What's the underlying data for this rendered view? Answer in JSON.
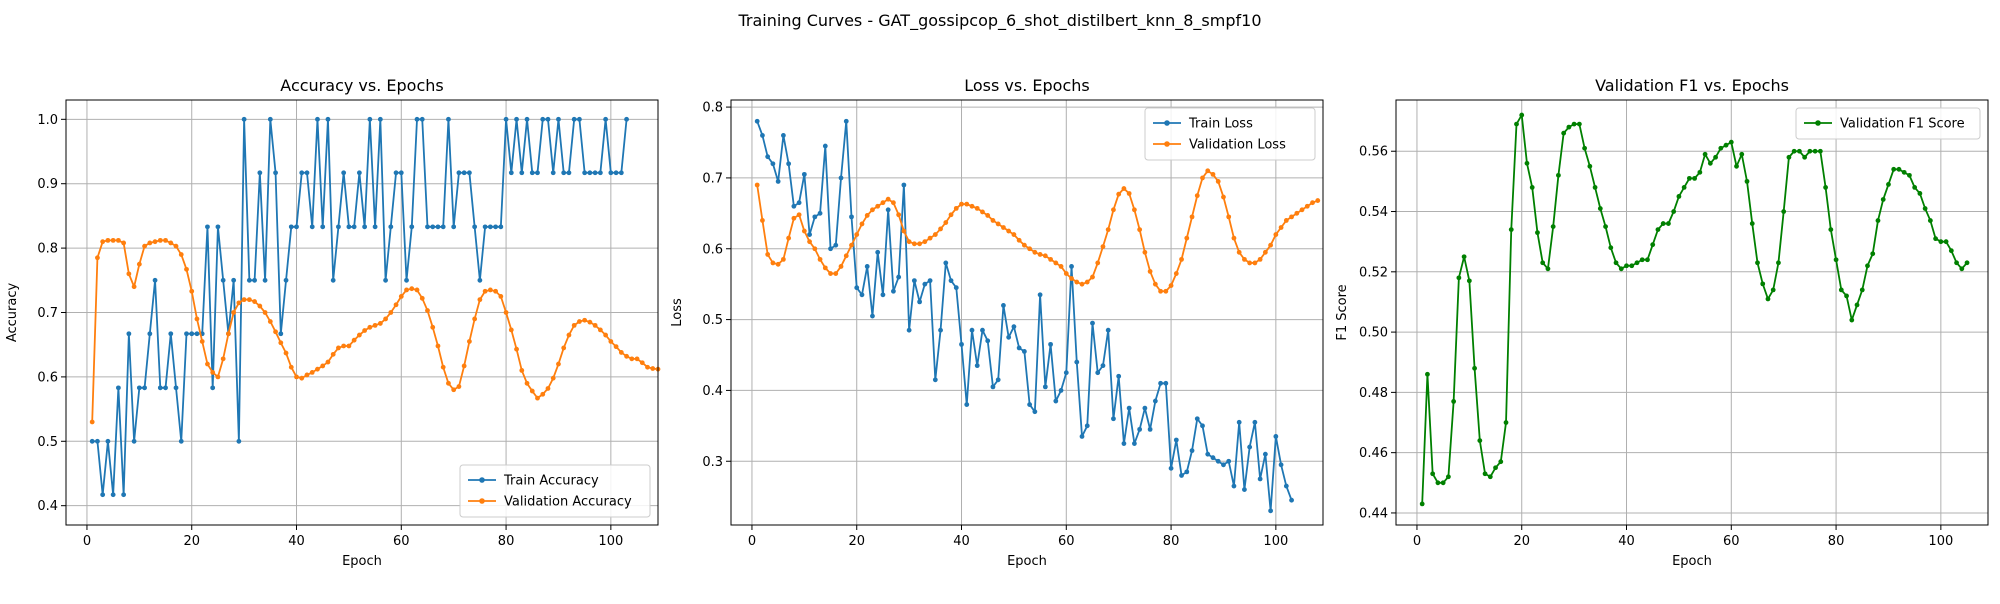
{
  "figure": {
    "suptitle": "Training Curves - GAT_gossipcop_6_shot_distilbert_knn_8_smpf10"
  },
  "colors": {
    "train": "#1f77b4",
    "val": "#ff7f0e",
    "f1": "#008000",
    "grid": "#b0b0b0"
  },
  "chart_data": [
    {
      "type": "line",
      "title": "Accuracy vs. Epochs",
      "xlabel": "Epoch",
      "ylabel": "Accuracy",
      "xlim": [
        -4,
        109
      ],
      "ylim": [
        0.37,
        1.03
      ],
      "xticks": [
        0,
        20,
        40,
        60,
        80,
        100
      ],
      "yticks": [
        0.4,
        0.5,
        0.6,
        0.7,
        0.8,
        0.9,
        1.0
      ],
      "ytick_labels": [
        "0.4",
        "0.5",
        "0.6",
        "0.7",
        "0.8",
        "0.9",
        "1.0"
      ],
      "grid": true,
      "legend": "lower-right",
      "series": [
        {
          "name": "Train Accuracy",
          "color": "#1f77b4",
          "x_start": 1,
          "values": [
            0.5,
            0.5,
            0.417,
            0.5,
            0.417,
            0.583,
            0.417,
            0.667,
            0.5,
            0.583,
            0.583,
            0.667,
            0.75,
            0.583,
            0.583,
            0.667,
            0.583,
            0.5,
            0.667,
            0.667,
            0.667,
            0.667,
            0.833,
            0.583,
            0.833,
            0.75,
            0.667,
            0.75,
            0.5,
            1.0,
            0.75,
            0.75,
            0.917,
            0.75,
            1.0,
            0.917,
            0.667,
            0.75,
            0.833,
            0.833,
            0.917,
            0.917,
            0.833,
            1.0,
            0.833,
            1.0,
            0.75,
            0.833,
            0.917,
            0.833,
            0.833,
            0.917,
            0.833,
            1.0,
            0.833,
            1.0,
            0.75,
            0.833,
            0.917,
            0.917,
            0.75,
            0.833,
            1.0,
            1.0,
            0.833,
            0.833,
            0.833,
            0.833,
            1.0,
            0.833,
            0.917,
            0.917,
            0.917,
            0.833,
            0.75,
            0.833,
            0.833,
            0.833,
            0.833,
            1.0,
            0.917,
            1.0,
            0.917,
            1.0,
            0.917,
            0.917,
            1.0,
            1.0,
            0.917,
            1.0,
            0.917,
            0.917,
            1.0,
            1.0,
            0.917,
            0.917,
            0.917,
            0.917,
            1.0,
            0.917,
            0.917,
            0.917,
            1.0
          ]
        },
        {
          "name": "Validation Accuracy",
          "color": "#ff7f0e",
          "x_start": 1,
          "values": [
            0.53,
            0.785,
            0.81,
            0.812,
            0.812,
            0.812,
            0.808,
            0.76,
            0.74,
            0.775,
            0.803,
            0.808,
            0.81,
            0.812,
            0.812,
            0.808,
            0.803,
            0.79,
            0.767,
            0.733,
            0.69,
            0.655,
            0.62,
            0.607,
            0.6,
            0.628,
            0.667,
            0.7,
            0.715,
            0.72,
            0.72,
            0.717,
            0.71,
            0.7,
            0.686,
            0.67,
            0.653,
            0.637,
            0.615,
            0.6,
            0.598,
            0.603,
            0.607,
            0.612,
            0.617,
            0.623,
            0.635,
            0.645,
            0.648,
            0.648,
            0.657,
            0.665,
            0.672,
            0.677,
            0.68,
            0.683,
            0.69,
            0.7,
            0.712,
            0.725,
            0.735,
            0.737,
            0.735,
            0.722,
            0.703,
            0.677,
            0.648,
            0.615,
            0.59,
            0.58,
            0.585,
            0.617,
            0.655,
            0.69,
            0.72,
            0.733,
            0.735,
            0.733,
            0.725,
            0.7,
            0.673,
            0.643,
            0.61,
            0.59,
            0.578,
            0.567,
            0.573,
            0.582,
            0.598,
            0.62,
            0.645,
            0.665,
            0.68,
            0.686,
            0.688,
            0.685,
            0.68,
            0.673,
            0.665,
            0.655,
            0.647,
            0.638,
            0.632,
            0.628,
            0.628,
            0.622,
            0.615,
            0.613,
            0.612
          ]
        }
      ]
    },
    {
      "type": "line",
      "title": "Loss vs. Epochs",
      "xlabel": "Epoch",
      "ylabel": "Loss",
      "xlim": [
        -4,
        109
      ],
      "ylim": [
        0.21,
        0.81
      ],
      "xticks": [
        0,
        20,
        40,
        60,
        80,
        100
      ],
      "yticks": [
        0.3,
        0.4,
        0.5,
        0.6,
        0.7,
        0.8
      ],
      "ytick_labels": [
        "0.3",
        "0.4",
        "0.5",
        "0.6",
        "0.7",
        "0.8"
      ],
      "grid": true,
      "legend": "top-right",
      "series": [
        {
          "name": "Train Loss",
          "color": "#1f77b4",
          "x_start": 1,
          "values": [
            0.78,
            0.76,
            0.73,
            0.72,
            0.695,
            0.76,
            0.72,
            0.66,
            0.665,
            0.705,
            0.62,
            0.645,
            0.65,
            0.745,
            0.6,
            0.605,
            0.7,
            0.78,
            0.645,
            0.545,
            0.535,
            0.575,
            0.505,
            0.595,
            0.535,
            0.655,
            0.54,
            0.56,
            0.69,
            0.485,
            0.555,
            0.525,
            0.55,
            0.555,
            0.415,
            0.485,
            0.58,
            0.555,
            0.545,
            0.465,
            0.38,
            0.485,
            0.435,
            0.485,
            0.47,
            0.405,
            0.415,
            0.52,
            0.475,
            0.49,
            0.46,
            0.455,
            0.38,
            0.37,
            0.535,
            0.405,
            0.465,
            0.385,
            0.4,
            0.425,
            0.575,
            0.44,
            0.335,
            0.35,
            0.495,
            0.425,
            0.435,
            0.485,
            0.36,
            0.42,
            0.325,
            0.375,
            0.325,
            0.345,
            0.375,
            0.345,
            0.385,
            0.41,
            0.41,
            0.29,
            0.33,
            0.28,
            0.285,
            0.315,
            0.36,
            0.35,
            0.31,
            0.305,
            0.3,
            0.295,
            0.3,
            0.265,
            0.355,
            0.26,
            0.32,
            0.355,
            0.275,
            0.31,
            0.23,
            0.335,
            0.295,
            0.265,
            0.245
          ]
        },
        {
          "name": "Validation Loss",
          "color": "#ff7f0e",
          "x_start": 1,
          "values": [
            0.69,
            0.64,
            0.592,
            0.58,
            0.578,
            0.585,
            0.615,
            0.643,
            0.648,
            0.625,
            0.61,
            0.6,
            0.585,
            0.573,
            0.565,
            0.565,
            0.575,
            0.59,
            0.605,
            0.62,
            0.635,
            0.647,
            0.655,
            0.66,
            0.665,
            0.67,
            0.665,
            0.648,
            0.625,
            0.61,
            0.607,
            0.607,
            0.61,
            0.615,
            0.62,
            0.628,
            0.637,
            0.648,
            0.657,
            0.663,
            0.663,
            0.66,
            0.657,
            0.652,
            0.647,
            0.64,
            0.635,
            0.63,
            0.625,
            0.62,
            0.612,
            0.605,
            0.6,
            0.595,
            0.592,
            0.59,
            0.585,
            0.58,
            0.575,
            0.565,
            0.558,
            0.553,
            0.55,
            0.553,
            0.56,
            0.58,
            0.603,
            0.627,
            0.655,
            0.677,
            0.685,
            0.678,
            0.655,
            0.627,
            0.595,
            0.568,
            0.55,
            0.54,
            0.54,
            0.548,
            0.565,
            0.585,
            0.615,
            0.645,
            0.675,
            0.7,
            0.71,
            0.705,
            0.695,
            0.673,
            0.645,
            0.615,
            0.595,
            0.585,
            0.58,
            0.58,
            0.585,
            0.595,
            0.605,
            0.62,
            0.63,
            0.64,
            0.645,
            0.65,
            0.655,
            0.66,
            0.665,
            0.668
          ]
        }
      ]
    },
    {
      "type": "line",
      "title": "Validation F1 vs. Epochs",
      "xlabel": "Epoch",
      "ylabel": "F1 Score",
      "xlim": [
        -4,
        109
      ],
      "ylim": [
        0.436,
        0.577
      ],
      "xticks": [
        0,
        20,
        40,
        60,
        80,
        100
      ],
      "yticks": [
        0.44,
        0.46,
        0.48,
        0.5,
        0.52,
        0.54,
        0.56
      ],
      "ytick_labels": [
        "0.44",
        "0.46",
        "0.48",
        "0.50",
        "0.52",
        "0.54",
        "0.56"
      ],
      "grid": true,
      "legend": "top-right",
      "series": [
        {
          "name": "Validation F1 Score",
          "color": "#008000",
          "x_start": 1,
          "values": [
            0.443,
            0.486,
            0.453,
            0.45,
            0.45,
            0.452,
            0.477,
            0.518,
            0.525,
            0.517,
            0.488,
            0.464,
            0.453,
            0.452,
            0.455,
            0.457,
            0.47,
            0.534,
            0.569,
            0.572,
            0.556,
            0.548,
            0.533,
            0.523,
            0.521,
            0.535,
            0.552,
            0.566,
            0.568,
            0.569,
            0.569,
            0.561,
            0.555,
            0.548,
            0.541,
            0.535,
            0.528,
            0.523,
            0.521,
            0.522,
            0.522,
            0.523,
            0.524,
            0.524,
            0.529,
            0.534,
            0.536,
            0.536,
            0.54,
            0.545,
            0.548,
            0.551,
            0.551,
            0.553,
            0.559,
            0.556,
            0.558,
            0.561,
            0.562,
            0.563,
            0.555,
            0.559,
            0.55,
            0.536,
            0.523,
            0.516,
            0.511,
            0.514,
            0.523,
            0.54,
            0.558,
            0.56,
            0.56,
            0.558,
            0.56,
            0.56,
            0.56,
            0.548,
            0.534,
            0.524,
            0.514,
            0.512,
            0.504,
            0.509,
            0.514,
            0.522,
            0.526,
            0.537,
            0.544,
            0.549,
            0.554,
            0.554,
            0.553,
            0.552,
            0.548,
            0.546,
            0.541,
            0.537,
            0.531,
            0.53,
            0.53,
            0.527,
            0.523,
            0.521,
            0.523
          ]
        }
      ]
    }
  ]
}
